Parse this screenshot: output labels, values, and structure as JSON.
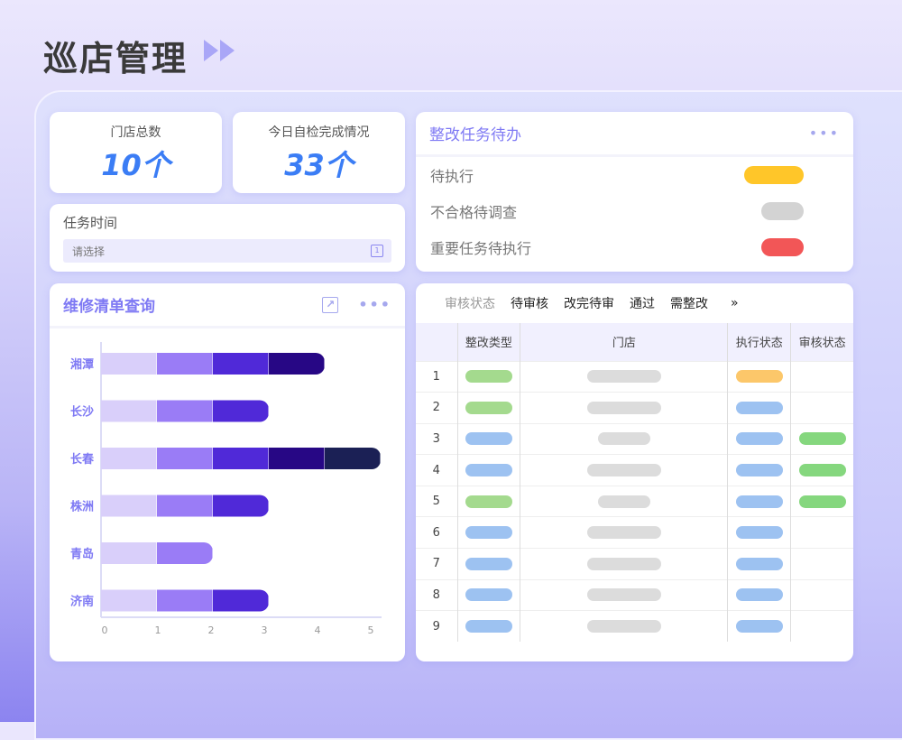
{
  "header": {
    "title": "巡店管理",
    "arrow_icon": "double-play-icon"
  },
  "stats": [
    {
      "label": "门店总数",
      "value": "10个"
    },
    {
      "label": "今日自检完成情况",
      "value": "33个"
    }
  ],
  "task_time": {
    "label": "任务时间",
    "placeholder": "请选择",
    "icon": "calendar-icon"
  },
  "todo": {
    "title": "整改任务待办",
    "items": [
      {
        "label": "待执行",
        "color": "#ffc629"
      },
      {
        "label": "不合格待调查",
        "color": "#d3d3d3"
      },
      {
        "label": "重要任务待执行",
        "color": "#f25657"
      }
    ]
  },
  "repair": {
    "title": "维修清单查询"
  },
  "chart_data": {
    "type": "bar",
    "orientation": "horizontal",
    "stacked": true,
    "categories": [
      "湘潭",
      "长沙",
      "长春",
      "株洲",
      "青岛",
      "济南"
    ],
    "segment_colors": [
      "#d9cffa",
      "#9a7cf6",
      "#5029d8",
      "#270785",
      "#1b2055"
    ],
    "values": [
      4,
      3,
      5,
      3,
      2,
      3
    ],
    "xticks": [
      "0",
      "1",
      "2",
      "3",
      "4",
      "5"
    ],
    "xlim": [
      0,
      5
    ]
  },
  "review": {
    "filter_label": "审核状态",
    "filters": [
      "待审核",
      "改完待审",
      "通过",
      "需整改"
    ],
    "more": "»",
    "columns": [
      "",
      "整改类型",
      "门店",
      "执行状态",
      "审核状态"
    ],
    "colors": {
      "green": "#a4da8e",
      "blue": "#9dc2f1",
      "gray": "#dcdcdc",
      "orange": "#fcc76a",
      "ok": "#85d77e"
    },
    "rows": [
      {
        "no": "1",
        "type": "green",
        "store": "long",
        "exec": "orange",
        "audit": ""
      },
      {
        "no": "2",
        "type": "green",
        "store": "long",
        "exec": "blue",
        "audit": ""
      },
      {
        "no": "3",
        "type": "blue",
        "store": "short",
        "exec": "blue",
        "audit": "ok"
      },
      {
        "no": "4",
        "type": "blue",
        "store": "long",
        "exec": "blue",
        "audit": "ok"
      },
      {
        "no": "5",
        "type": "green",
        "store": "short",
        "exec": "blue",
        "audit": "ok"
      },
      {
        "no": "6",
        "type": "blue",
        "store": "long",
        "exec": "blue",
        "audit": ""
      },
      {
        "no": "7",
        "type": "blue",
        "store": "long",
        "exec": "blue",
        "audit": ""
      },
      {
        "no": "8",
        "type": "blue",
        "store": "long",
        "exec": "blue",
        "audit": ""
      },
      {
        "no": "9",
        "type": "blue",
        "store": "long",
        "exec": "blue",
        "audit": ""
      }
    ]
  }
}
